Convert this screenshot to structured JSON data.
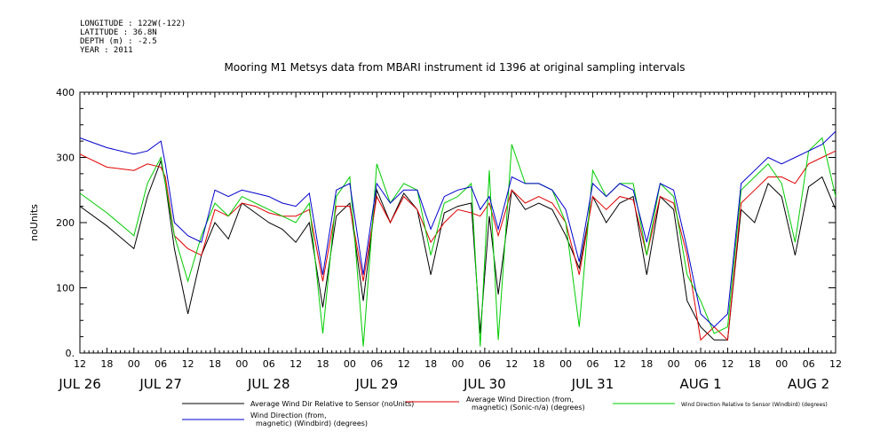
{
  "header": {
    "longitude": "LONGITUDE : 122W(-122)",
    "latitude": "LATITUDE : 36.8N",
    "depth": "DEPTH (m) : -2.5",
    "year": "YEAR : 2011"
  },
  "chart_data": {
    "type": "line",
    "title": "Mooring M1 Metsys data from MBARI instrument id 1396 at original sampling intervals",
    "ylabel": "noUnits",
    "ylim": [
      0,
      400
    ],
    "yticks": [
      0,
      100,
      200,
      300,
      400
    ],
    "ytick_labels": [
      "0.",
      "100",
      "200",
      "300",
      "400"
    ],
    "xlim_hours": [
      0,
      168
    ],
    "x_hour_labels": [
      "12",
      "18",
      "00",
      "06",
      "12",
      "18",
      "00",
      "06",
      "12",
      "18",
      "00",
      "06",
      "12",
      "18",
      "00",
      "06",
      "12",
      "18",
      "00",
      "06",
      "12",
      "18",
      "00",
      "06",
      "12",
      "18",
      "00",
      "06",
      "12"
    ],
    "x_day_labels": [
      "JUL 26",
      "JUL 27",
      "JUL 28",
      "JUL 29",
      "JUL 30",
      "JUL 31",
      "AUG 1",
      "AUG 2"
    ],
    "x_day_label_hours": [
      0,
      18,
      42,
      66,
      90,
      114,
      138,
      162
    ],
    "grid": false,
    "legend_placement": "bottom",
    "series": [
      {
        "name": "Average Wind Dir Relative to Sensor (noUnits)",
        "color": "#000000",
        "x": [
          0,
          6,
          12,
          15,
          18,
          19,
          21,
          24,
          27,
          30,
          33,
          36,
          39,
          42,
          45,
          48,
          51,
          54,
          57,
          60,
          63,
          66,
          69,
          72,
          75,
          78,
          81,
          84,
          87,
          89,
          91,
          93,
          96,
          99,
          102,
          105,
          108,
          111,
          114,
          117,
          120,
          123,
          126,
          129,
          132,
          135,
          138,
          141,
          144,
          147,
          150,
          153,
          156,
          159,
          162,
          165,
          168
        ],
        "y": [
          225,
          195,
          160,
          240,
          295,
          260,
          160,
          60,
          150,
          200,
          175,
          230,
          215,
          200,
          190,
          170,
          200,
          70,
          210,
          230,
          80,
          250,
          200,
          245,
          220,
          120,
          215,
          225,
          230,
          30,
          210,
          90,
          250,
          220,
          230,
          220,
          180,
          130,
          240,
          200,
          230,
          240,
          120,
          240,
          220,
          80,
          40,
          20,
          20,
          220,
          200,
          260,
          240,
          150,
          255,
          270,
          220
        ]
      },
      {
        "name": "Average Wind Direction (from, magnetic) (Sonic-n/a) (degrees)",
        "color": "#e00000",
        "x": [
          0,
          6,
          12,
          15,
          18,
          19,
          21,
          24,
          27,
          30,
          33,
          36,
          39,
          42,
          45,
          48,
          51,
          54,
          57,
          60,
          63,
          66,
          69,
          72,
          75,
          78,
          81,
          84,
          87,
          89,
          91,
          93,
          96,
          99,
          102,
          105,
          108,
          111,
          114,
          117,
          120,
          123,
          126,
          129,
          132,
          135,
          138,
          141,
          144,
          147,
          150,
          153,
          156,
          159,
          162,
          165,
          168
        ],
        "y": [
          305,
          285,
          280,
          290,
          285,
          270,
          180,
          160,
          150,
          220,
          210,
          230,
          225,
          215,
          210,
          210,
          220,
          110,
          225,
          225,
          110,
          240,
          200,
          240,
          220,
          170,
          200,
          220,
          215,
          210,
          230,
          180,
          250,
          230,
          240,
          230,
          200,
          120,
          240,
          220,
          240,
          235,
          150,
          240,
          230,
          150,
          20,
          40,
          20,
          230,
          250,
          270,
          270,
          260,
          290,
          300,
          310
        ]
      },
      {
        "name": "Wind Direction Relative to Sensor (Windbird) (degrees)",
        "color": "#00cc00",
        "x": [
          0,
          6,
          12,
          15,
          18,
          19,
          21,
          24,
          27,
          30,
          33,
          36,
          39,
          42,
          45,
          48,
          51,
          54,
          57,
          60,
          63,
          66,
          69,
          72,
          75,
          78,
          81,
          84,
          87,
          89,
          91,
          93,
          96,
          99,
          102,
          105,
          108,
          111,
          114,
          117,
          120,
          123,
          126,
          129,
          132,
          135,
          138,
          141,
          144,
          147,
          150,
          153,
          156,
          159,
          162,
          165,
          168
        ],
        "y": [
          245,
          215,
          180,
          260,
          300,
          260,
          180,
          110,
          180,
          230,
          210,
          240,
          230,
          220,
          210,
          200,
          230,
          30,
          240,
          270,
          10,
          290,
          230,
          260,
          250,
          150,
          230,
          240,
          260,
          10,
          280,
          20,
          320,
          260,
          260,
          250,
          200,
          40,
          280,
          240,
          260,
          260,
          150,
          260,
          240,
          120,
          80,
          30,
          40,
          250,
          270,
          290,
          260,
          170,
          310,
          330,
          240
        ]
      },
      {
        "name": "Wind Direction (from, magnetic) (Windbird) (degrees)",
        "color": "#0000cc",
        "x": [
          0,
          6,
          12,
          15,
          18,
          19,
          21,
          24,
          27,
          30,
          33,
          36,
          39,
          42,
          45,
          48,
          51,
          54,
          57,
          60,
          63,
          66,
          69,
          72,
          75,
          78,
          81,
          84,
          87,
          89,
          91,
          93,
          96,
          99,
          102,
          105,
          108,
          111,
          114,
          117,
          120,
          123,
          126,
          129,
          132,
          135,
          138,
          141,
          144,
          147,
          150,
          153,
          156,
          159,
          162,
          165,
          168
        ],
        "y": [
          330,
          315,
          305,
          310,
          325,
          290,
          200,
          180,
          170,
          250,
          240,
          250,
          245,
          240,
          230,
          225,
          245,
          120,
          250,
          260,
          120,
          260,
          230,
          250,
          250,
          190,
          240,
          250,
          255,
          220,
          240,
          190,
          270,
          260,
          260,
          250,
          220,
          140,
          260,
          240,
          260,
          250,
          170,
          260,
          250,
          160,
          60,
          40,
          60,
          260,
          280,
          300,
          290,
          300,
          310,
          320,
          340
        ]
      }
    ]
  }
}
